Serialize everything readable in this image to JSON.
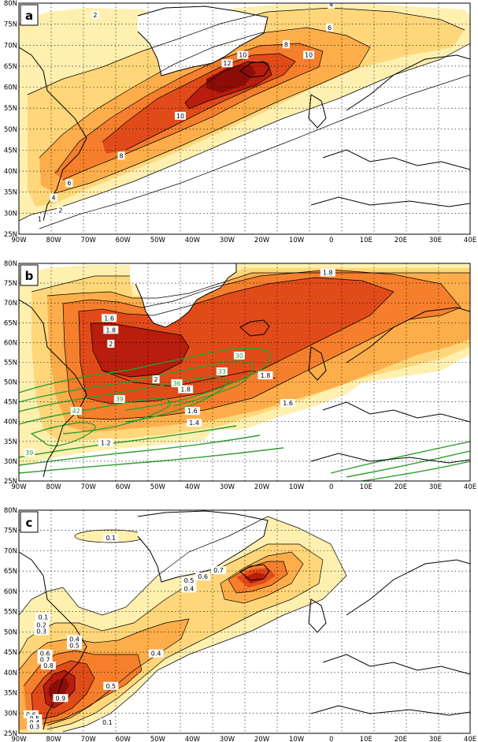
{
  "figure": {
    "lon_ticks": [
      "90W",
      "80W",
      "70W",
      "60W",
      "50W",
      "40W",
      "30W",
      "20W",
      "10W",
      "0",
      "10E",
      "20E",
      "30E",
      "40E"
    ],
    "lat_ticks": [
      "80N",
      "75N",
      "70N",
      "65N",
      "60N",
      "55N",
      "50N",
      "45N",
      "40N",
      "35N",
      "30N",
      "25N"
    ],
    "colors": {
      "c1": "#fff0b0",
      "c2": "#ffd77a",
      "c3": "#fdae4b",
      "c4": "#f57f2c",
      "c5": "#e14b1a",
      "c6": "#b81d0e",
      "c7": "#8c0d08",
      "green": "#2ea02e"
    }
  },
  "panels": [
    {
      "label": "a",
      "contour_labels": [
        {
          "text": "2",
          "lon": -68,
          "lat": 77
        },
        {
          "text": "4",
          "lon": 0,
          "lat": 79.5
        },
        {
          "text": "6",
          "lon": -0.5,
          "lat": 74
        },
        {
          "text": "8",
          "lon": -13,
          "lat": 70
        },
        {
          "text": "10",
          "lon": -25.5,
          "lat": 67.5
        },
        {
          "text": "12",
          "lon": -30,
          "lat": 65.5
        },
        {
          "text": "10",
          "lon": -6.5,
          "lat": 67.5
        },
        {
          "text": "10",
          "lon": -43.5,
          "lat": 53
        },
        {
          "text": "8",
          "lon": -60.5,
          "lat": 43.5
        },
        {
          "text": "6",
          "lon": -75.5,
          "lat": 37
        },
        {
          "text": "4",
          "lon": -80,
          "lat": 33.5
        },
        {
          "text": "2",
          "lon": -78,
          "lat": 30.5
        },
        {
          "text": "1",
          "lon": -84,
          "lat": 28.5
        }
      ]
    },
    {
      "label": "b",
      "contour_labels": [
        {
          "text": "1.8",
          "lon": -1,
          "lat": 77.5,
          "color": "black"
        },
        {
          "text": "1.6",
          "lon": -64,
          "lat": 66,
          "color": "black"
        },
        {
          "text": "1.8",
          "lon": -63.5,
          "lat": 63,
          "color": "black"
        },
        {
          "text": "2",
          "lon": -63.5,
          "lat": 59.5,
          "color": "black"
        },
        {
          "text": "2",
          "lon": -50.5,
          "lat": 50.5,
          "color": "black"
        },
        {
          "text": "1.8",
          "lon": -42,
          "lat": 48,
          "color": "black"
        },
        {
          "text": "1.8",
          "lon": -19,
          "lat": 51.5,
          "color": "black"
        },
        {
          "text": "1.6",
          "lon": -40,
          "lat": 42.5,
          "color": "black"
        },
        {
          "text": "1.4",
          "lon": -39.5,
          "lat": 39.5,
          "color": "black"
        },
        {
          "text": "1.2",
          "lon": -65,
          "lat": 34.5,
          "color": "black"
        },
        {
          "text": "1.6",
          "lon": -12.5,
          "lat": 44.5,
          "color": "black"
        },
        {
          "text": "30",
          "lon": -26.5,
          "lat": 56.5,
          "color": "green"
        },
        {
          "text": "33",
          "lon": -31.5,
          "lat": 52.5,
          "color": "green"
        },
        {
          "text": "36",
          "lon": -44.5,
          "lat": 49.5,
          "color": "green"
        },
        {
          "text": "39",
          "lon": -61,
          "lat": 45.5,
          "color": "green"
        },
        {
          "text": "42",
          "lon": -73.5,
          "lat": 42.5,
          "color": "green"
        },
        {
          "text": "39",
          "lon": -87,
          "lat": 32,
          "color": "green"
        }
      ]
    },
    {
      "label": "c",
      "contour_labels": [
        {
          "text": "0.1",
          "lon": -63.5,
          "lat": 73,
          "color": "black"
        },
        {
          "text": "0.7",
          "lon": -32.5,
          "lat": 65,
          "color": "black"
        },
        {
          "text": "0.6",
          "lon": -37,
          "lat": 63.5,
          "color": "black"
        },
        {
          "text": "0.5",
          "lon": -41,
          "lat": 62.5,
          "color": "black"
        },
        {
          "text": "0.4",
          "lon": -41,
          "lat": 60.5,
          "color": "black"
        },
        {
          "text": "0.1",
          "lon": -83,
          "lat": 53.5,
          "color": "black"
        },
        {
          "text": "0.2",
          "lon": -83.5,
          "lat": 51.5,
          "color": "black"
        },
        {
          "text": "0.3",
          "lon": -83.5,
          "lat": 50,
          "color": "black"
        },
        {
          "text": "0.4",
          "lon": -74,
          "lat": 48,
          "color": "black"
        },
        {
          "text": "0.5",
          "lon": -74,
          "lat": 46.5,
          "color": "black"
        },
        {
          "text": "0.6",
          "lon": -82.5,
          "lat": 44.5,
          "color": "black"
        },
        {
          "text": "0.7",
          "lon": -82.5,
          "lat": 43,
          "color": "black"
        },
        {
          "text": "0.8",
          "lon": -81.5,
          "lat": 41.5,
          "color": "black"
        },
        {
          "text": "0.4",
          "lon": -50.5,
          "lat": 44.5,
          "color": "black"
        },
        {
          "text": "0.5",
          "lon": -63.5,
          "lat": 36.5,
          "color": "black"
        },
        {
          "text": "0.9",
          "lon": -78,
          "lat": 33.5,
          "color": "black"
        },
        {
          "text": "0.6",
          "lon": -86.5,
          "lat": 29.5,
          "color": "black"
        },
        {
          "text": "0.5",
          "lon": -85.5,
          "lat": 28.5,
          "color": "black"
        },
        {
          "text": "0.4",
          "lon": -85.5,
          "lat": 27.5,
          "color": "black"
        },
        {
          "text": "0.3",
          "lon": -85.5,
          "lat": 26.5,
          "color": "black"
        },
        {
          "text": "0.1",
          "lon": -64.5,
          "lat": 27.5,
          "color": "black"
        }
      ]
    }
  ]
}
